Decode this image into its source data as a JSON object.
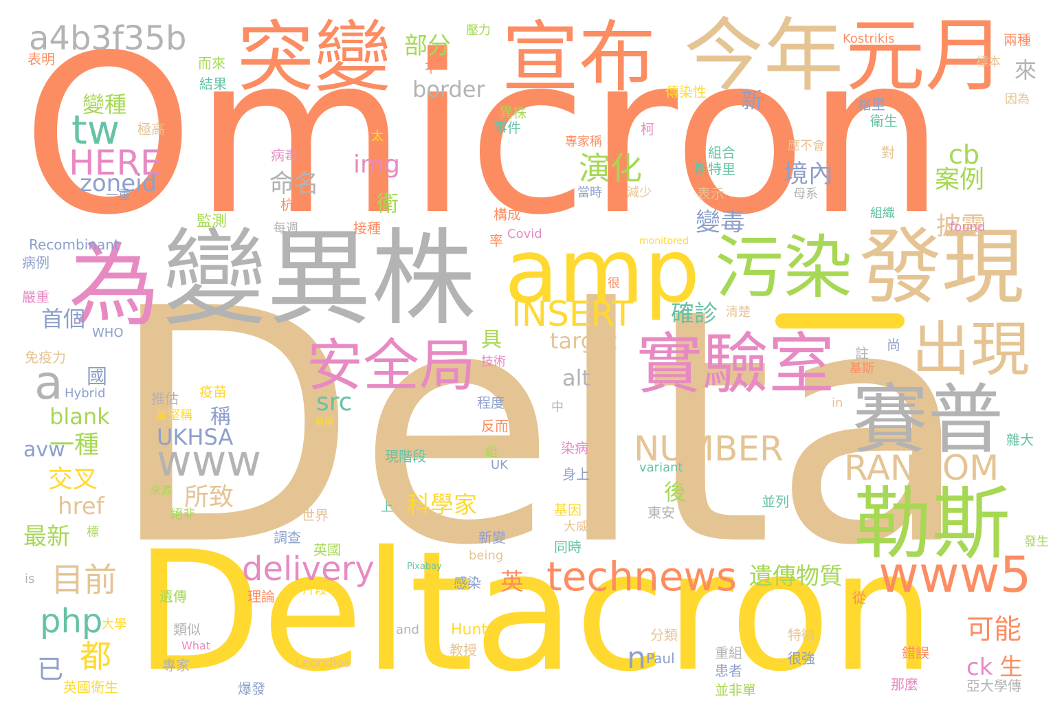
{
  "palette": {
    "orange": "#fc8d62",
    "tan": "#e5c494",
    "yellow": "#ffd92f",
    "gray": "#b3b3b3",
    "pink": "#e78ac3",
    "green": "#a6d854",
    "teal": "#66c2a5",
    "blue": "#8da0cb"
  },
  "words": [
    "Omicron",
    "Delta",
    "Deltacron",
    "變異株",
    "為",
    "amp",
    "污染",
    "發現",
    "突變",
    "宣布",
    "今年",
    "元月",
    "實驗室",
    "安全局",
    "賽普",
    "勒斯",
    "出現",
    "www5",
    "technews",
    "delivery",
    "a4b3f35b",
    "tw",
    "HERE",
    "zoneid",
    "www",
    "INSERT",
    "NUMBER",
    "RANDOM",
    "a",
    "演化",
    "cb",
    "案例",
    "境內",
    "變毒",
    "披露",
    "php",
    "都",
    "目前",
    "已",
    "科學家",
    "遺傳物質",
    "可能",
    "ck",
    "生",
    "n",
    "英",
    "部分",
    "border",
    "img",
    "命名",
    "確診",
    "target",
    "alt",
    "src",
    "blank",
    "UKHSA",
    "avw",
    "一種",
    "交叉",
    "所致",
    "href",
    "最新",
    "後",
    "首個",
    "國",
    "稱",
    "具",
    "變種",
    "新",
    "來",
    "衛",
    "壓力",
    "Kostrikis",
    "兩種",
    "表明",
    "而來",
    "結果",
    "不",
    "標本",
    "傳染性",
    "異株",
    "極高",
    "事件",
    "格里",
    "衛生",
    "因為",
    "太",
    "柯",
    "專家稱",
    "病毒",
    "組合",
    "應不會",
    "斯特里",
    "表示",
    "對",
    "當時",
    "減少",
    "杭特",
    "母系",
    "構成",
    "監測",
    "接種",
    "每週",
    "一重",
    "組織",
    "found",
    "Recombinant",
    "率",
    "Covid",
    "monitored",
    "病例",
    "嚴重",
    "很",
    "清楚",
    "WHO",
    "尚",
    "免疫力",
    "技術",
    "註",
    "基斯",
    "推估",
    "疫苗",
    "Hybrid",
    "並堅稱",
    "程度",
    "中",
    "in",
    "首個",
    "反而",
    "現階段",
    "染病",
    "組",
    "身上",
    "UK",
    "variant",
    "並列",
    "來源",
    "絕非",
    "世界",
    "上",
    "基因",
    "東安",
    "大學",
    "標",
    "大威",
    "調查",
    "新變",
    "同時",
    "英國",
    "發生",
    "being",
    "is",
    "Pixabay",
    "感染",
    "遺傳",
    "片段",
    "理論",
    "從",
    "Hunter",
    "and",
    "類似",
    "What",
    "教授",
    "分類",
    "重組",
    "特徵",
    "錯誤",
    "專家",
    "Paul",
    "Leondios",
    "患者",
    "很強",
    "英國衛生",
    "爆發",
    "並非單",
    "那麼",
    "亞大學傳",
    "雜大"
  ]
}
